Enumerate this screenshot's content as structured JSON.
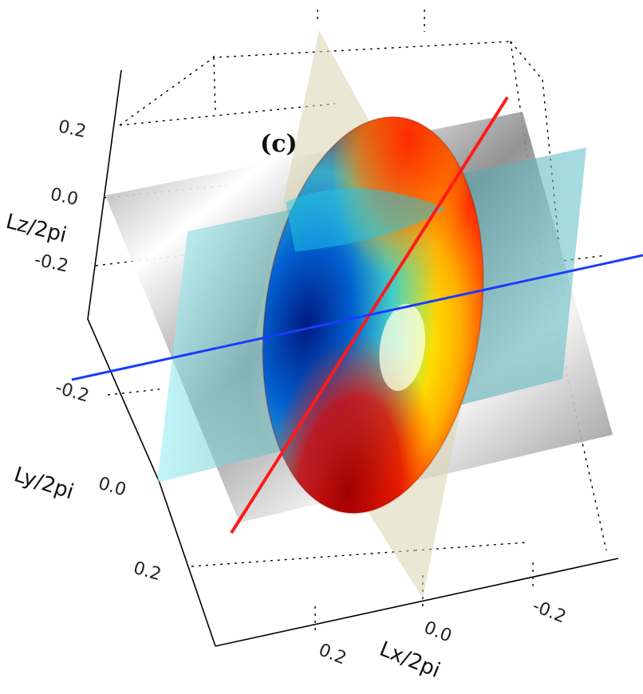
{
  "figure": {
    "panel_label": "(c)",
    "axes": {
      "x": {
        "label": "Lx/2pi",
        "ticks": [
          "0.2",
          "0.0",
          "-0.2"
        ]
      },
      "y": {
        "label": "Ly/2pi",
        "ticks": [
          "-0.2",
          "0.0",
          "0.2"
        ]
      },
      "z": {
        "label": "Lz/2pi",
        "ticks": [
          "0.2",
          "0.0",
          "-0.2"
        ]
      }
    },
    "colors": {
      "red_axis": "#ff1a1a",
      "blue_axis": "#1a3cff",
      "gray_plane": "#9a9a9a",
      "cyan_plane": "#7fd0d6",
      "beige_plane": "#ddd9b8",
      "ellipsoid_hot": "#d40000",
      "ellipsoid_yellow": "#ffee00",
      "ellipsoid_cyan": "#22c8e8",
      "ellipsoid_blue": "#00208c"
    }
  }
}
